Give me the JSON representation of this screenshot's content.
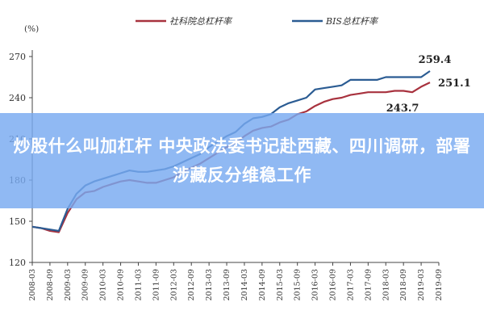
{
  "overlay": {
    "headline": "炒股什么叫加杠杆 中央政法委书记赴西藏、四川调研，部署涉藏反分维稳工作"
  },
  "chart_data": {
    "type": "line",
    "unit": "(%)",
    "ylim": [
      120,
      270
    ],
    "yticks": [
      120,
      150,
      180,
      210,
      240,
      270
    ],
    "x_tick_labels": [
      "2008-03",
      "2008-09",
      "2009-03",
      "2009-09",
      "2010-03",
      "2010-09",
      "2011-03",
      "2011-09",
      "2012-03",
      "2012-09",
      "2013-03",
      "2013-09",
      "2014-03",
      "2014-09",
      "2015-03",
      "2015-09",
      "2016-03",
      "2016-09",
      "2017-03",
      "2017-09",
      "2018-03",
      "2018-09",
      "2019-03",
      "2019-09"
    ],
    "x": [
      "2008-03",
      "2008-06",
      "2008-09",
      "2008-12",
      "2009-03",
      "2009-06",
      "2009-09",
      "2009-12",
      "2010-03",
      "2010-06",
      "2010-09",
      "2010-12",
      "2011-03",
      "2011-06",
      "2011-09",
      "2011-12",
      "2012-03",
      "2012-06",
      "2012-09",
      "2012-12",
      "2013-03",
      "2013-06",
      "2013-09",
      "2013-12",
      "2014-03",
      "2014-06",
      "2014-09",
      "2014-12",
      "2015-03",
      "2015-06",
      "2015-09",
      "2015-12",
      "2016-03",
      "2016-06",
      "2016-09",
      "2016-12",
      "2017-03",
      "2017-06",
      "2017-09",
      "2017-12",
      "2018-03",
      "2018-06",
      "2018-09",
      "2018-12",
      "2019-03",
      "2019-06"
    ],
    "grid": false,
    "legend_position": "top",
    "series": [
      {
        "name": "社科院总杠杆率",
        "color": "#a8323e",
        "values": [
          146,
          145,
          143,
          142,
          156,
          166,
          171,
          172,
          175,
          177,
          179,
          180,
          179,
          178,
          178,
          180,
          182,
          186,
          189,
          192,
          196,
          200,
          204,
          207,
          212,
          216,
          218,
          219,
          222,
          224,
          228,
          230,
          234,
          237,
          239,
          240,
          242,
          243,
          244,
          244,
          244,
          245,
          245,
          244,
          248,
          251.1
        ]
      },
      {
        "name": "BIS总杠杆率",
        "color": "#2b5c93",
        "values": [
          146,
          145,
          144,
          143,
          159,
          170,
          176,
          179,
          181,
          183,
          185,
          187,
          186,
          186,
          187,
          188,
          190,
          193,
          196,
          199,
          204,
          208,
          212,
          215,
          221,
          225,
          226,
          228,
          233,
          236,
          238,
          240,
          246,
          247,
          248,
          249,
          253,
          253,
          253,
          253,
          255,
          255,
          255,
          255,
          255,
          259.4
        ]
      }
    ],
    "annotations": [
      {
        "text": "259.4",
        "series": 1,
        "index": 45,
        "anchor": "above"
      },
      {
        "text": "251.1",
        "series": 0,
        "index": 45,
        "anchor": "right"
      },
      {
        "text": "243.7",
        "series": 0,
        "index": 43,
        "anchor": "below"
      }
    ]
  }
}
